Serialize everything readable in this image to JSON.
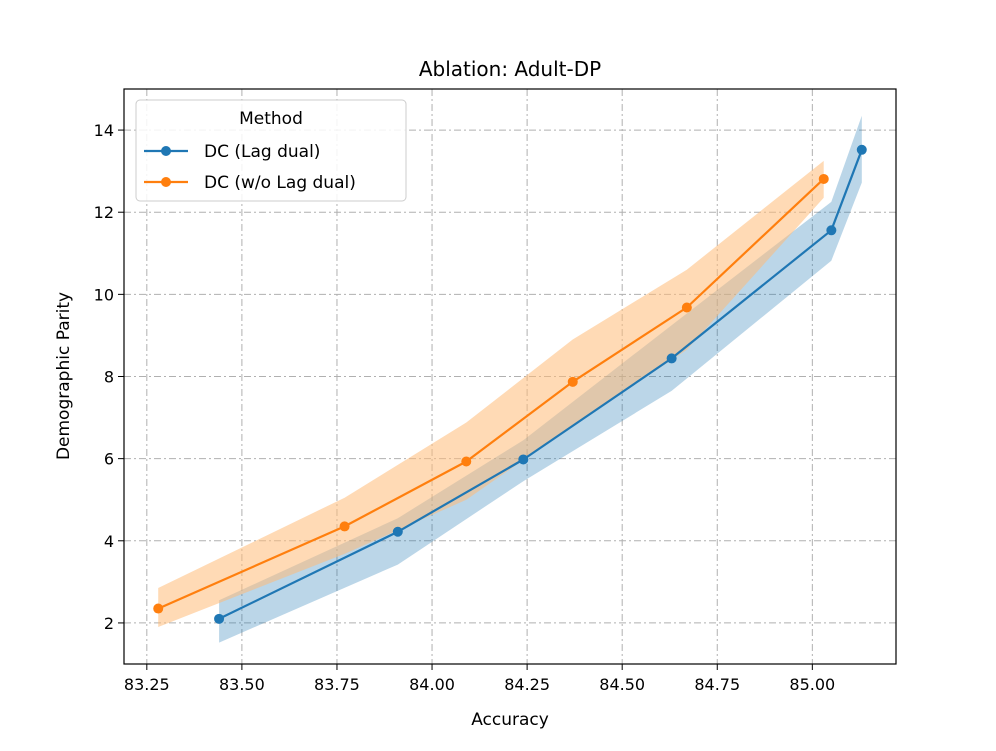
{
  "chart_data": {
    "type": "line",
    "title": "Ablation: Adult-DP",
    "xlabel": "Accuracy",
    "ylabel": "Demographic Parity",
    "xlim": [
      83.19,
      85.22
    ],
    "ylim": [
      1.0,
      15.0
    ],
    "xticks": [
      83.25,
      83.5,
      83.75,
      84.0,
      84.25,
      84.5,
      84.75,
      85.0
    ],
    "xtick_labels": [
      "83.25",
      "83.50",
      "83.75",
      "84.00",
      "84.25",
      "84.50",
      "84.75",
      "85.00"
    ],
    "yticks": [
      2,
      4,
      6,
      8,
      10,
      12,
      14
    ],
    "ytick_labels": [
      "2",
      "4",
      "6",
      "8",
      "10",
      "12",
      "14"
    ],
    "grid": true,
    "legend": {
      "title": "Method",
      "placement": "top-left"
    },
    "series": [
      {
        "name": "DC (Lag dual)",
        "color": "#1f77b4",
        "band_color": "#1f77b4",
        "x": [
          83.44,
          83.91,
          84.24,
          84.63,
          85.05,
          85.13
        ],
        "y": [
          2.1,
          4.22,
          5.98,
          8.44,
          11.56,
          13.52
        ],
        "lower": [
          1.52,
          3.42,
          5.45,
          7.65,
          10.82,
          12.72
        ],
        "upper": [
          2.55,
          4.55,
          6.45,
          9.25,
          12.25,
          14.35
        ]
      },
      {
        "name": "DC (w/o Lag dual)",
        "color": "#ff7f0e",
        "band_color": "#ffbb78",
        "x": [
          83.28,
          83.77,
          84.09,
          84.37,
          84.67,
          85.03
        ],
        "y": [
          2.35,
          4.35,
          5.93,
          7.87,
          9.68,
          12.81
        ],
        "lower": [
          1.9,
          3.68,
          5.0,
          6.8,
          8.65,
          12.35
        ],
        "upper": [
          2.85,
          5.05,
          6.88,
          8.9,
          10.6,
          13.25
        ]
      }
    ]
  }
}
